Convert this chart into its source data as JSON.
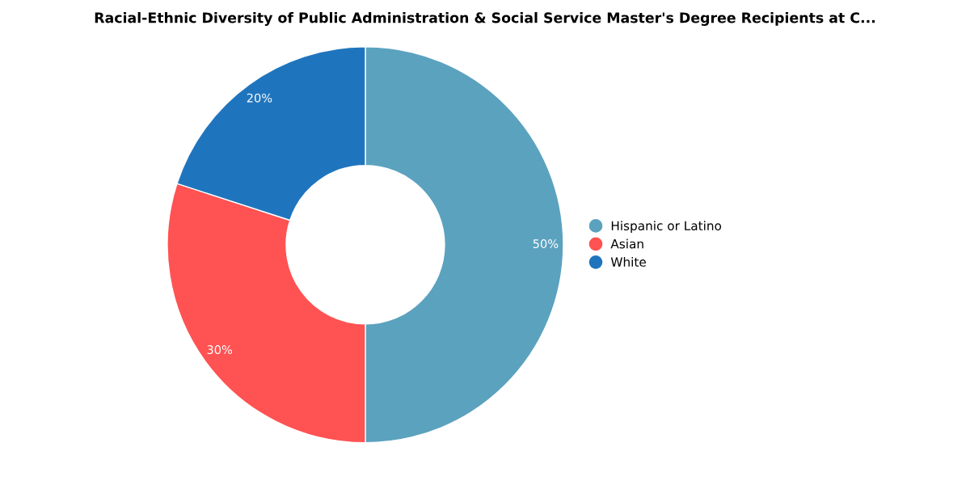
{
  "chart_data": {
    "type": "donut",
    "title": "Racial-Ethnic Diversity of Public Administration & Social Service Master's Degree Recipients at C...",
    "categories": [
      "Hispanic or Latino",
      "Asian",
      "White"
    ],
    "values": [
      50,
      30,
      20
    ],
    "colors": [
      "#5ba2bf",
      "#ff5252",
      "#1f75bd"
    ],
    "value_labels": [
      "50%",
      "30%",
      "20%"
    ],
    "legend": "right"
  }
}
